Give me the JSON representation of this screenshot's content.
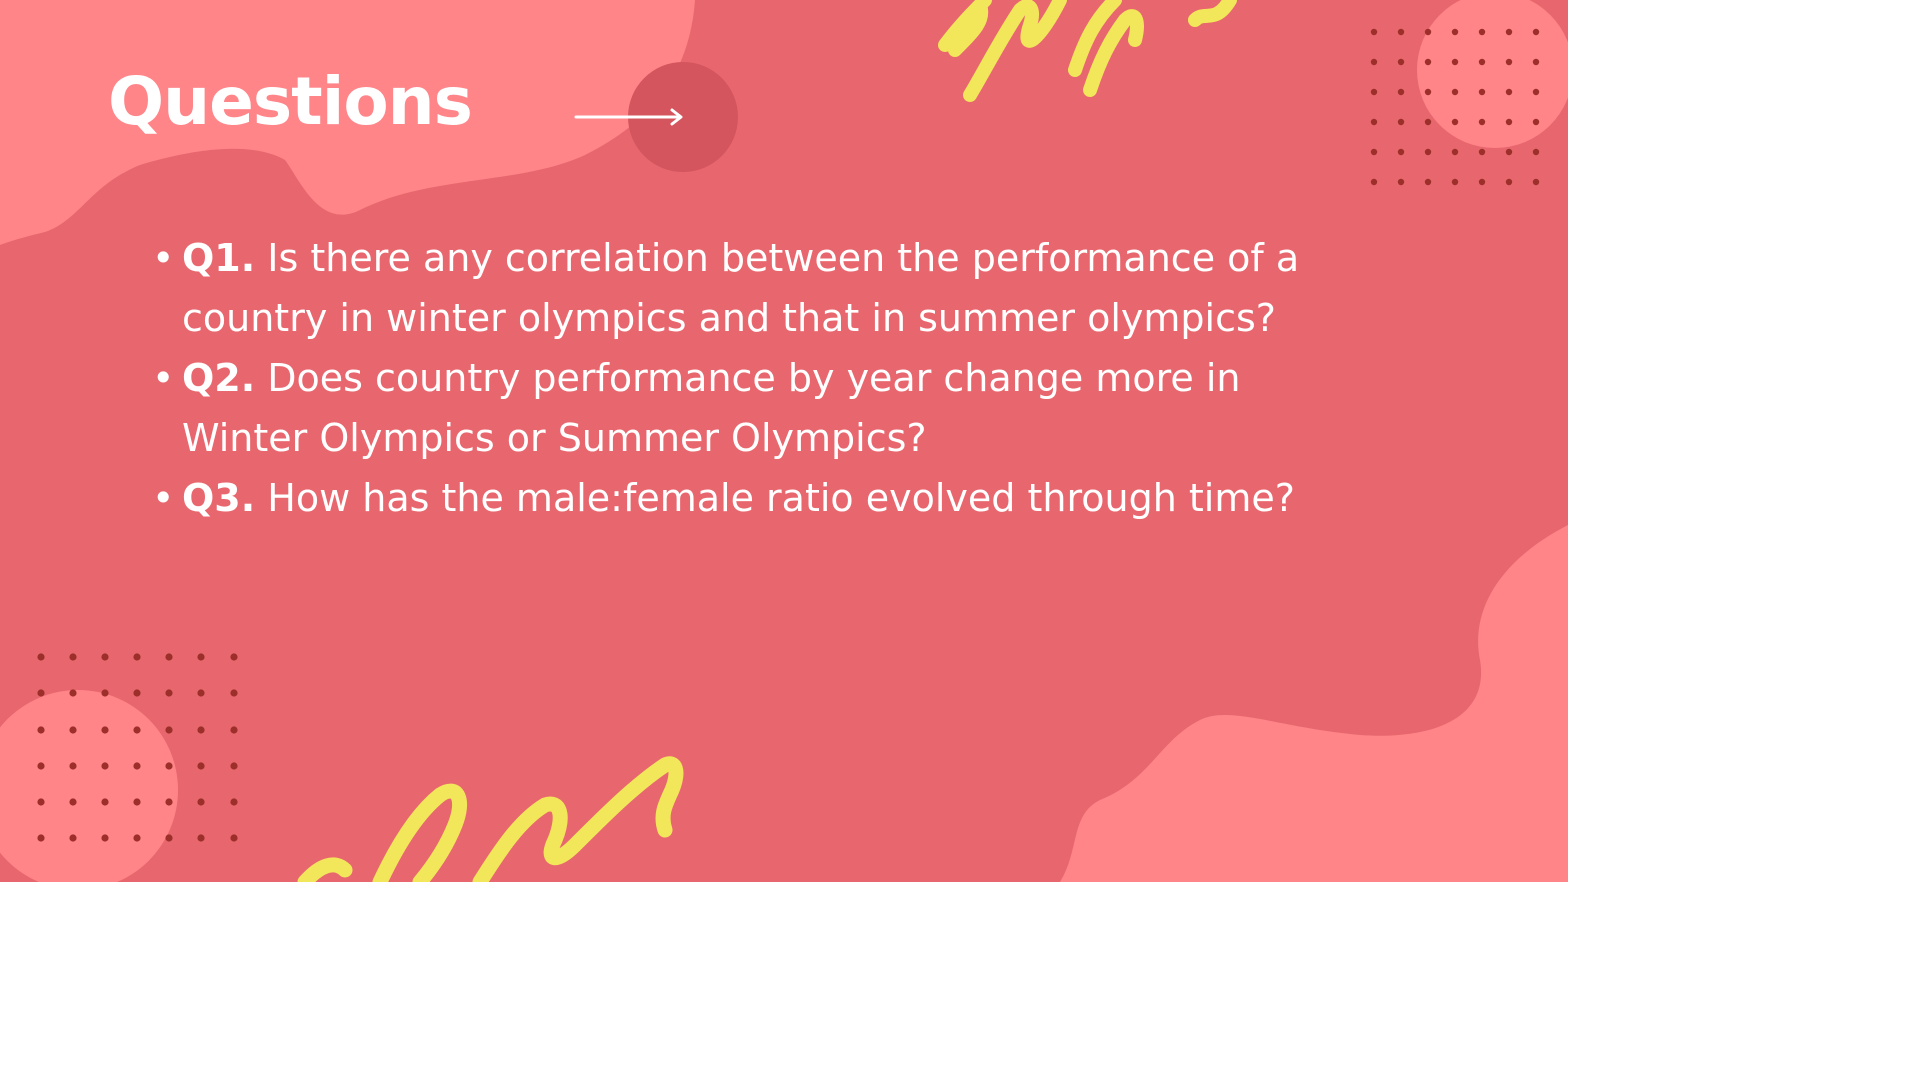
{
  "slide": {
    "title": "Questions",
    "questions": [
      {
        "number": "Q1.",
        "text": " Is there any correlation between the performance of a country in winter olympics and that in summer olympics?"
      },
      {
        "number": "Q2.",
        "text": " Does country performance by year change more in Winter Olympics or Summer Olympics?"
      },
      {
        "number": "Q3.",
        "text": " How has the male:female ratio evolved through time?"
      }
    ]
  },
  "colors": {
    "background": "#e8676e",
    "light_blob": "#ff8589",
    "dark_circle": "#d4555d",
    "dots": "#9c2f2a",
    "scribble": "#f2e75a",
    "text": "#ffffff"
  },
  "icons": [
    "arrow-right-icon",
    "bullet-icon"
  ]
}
